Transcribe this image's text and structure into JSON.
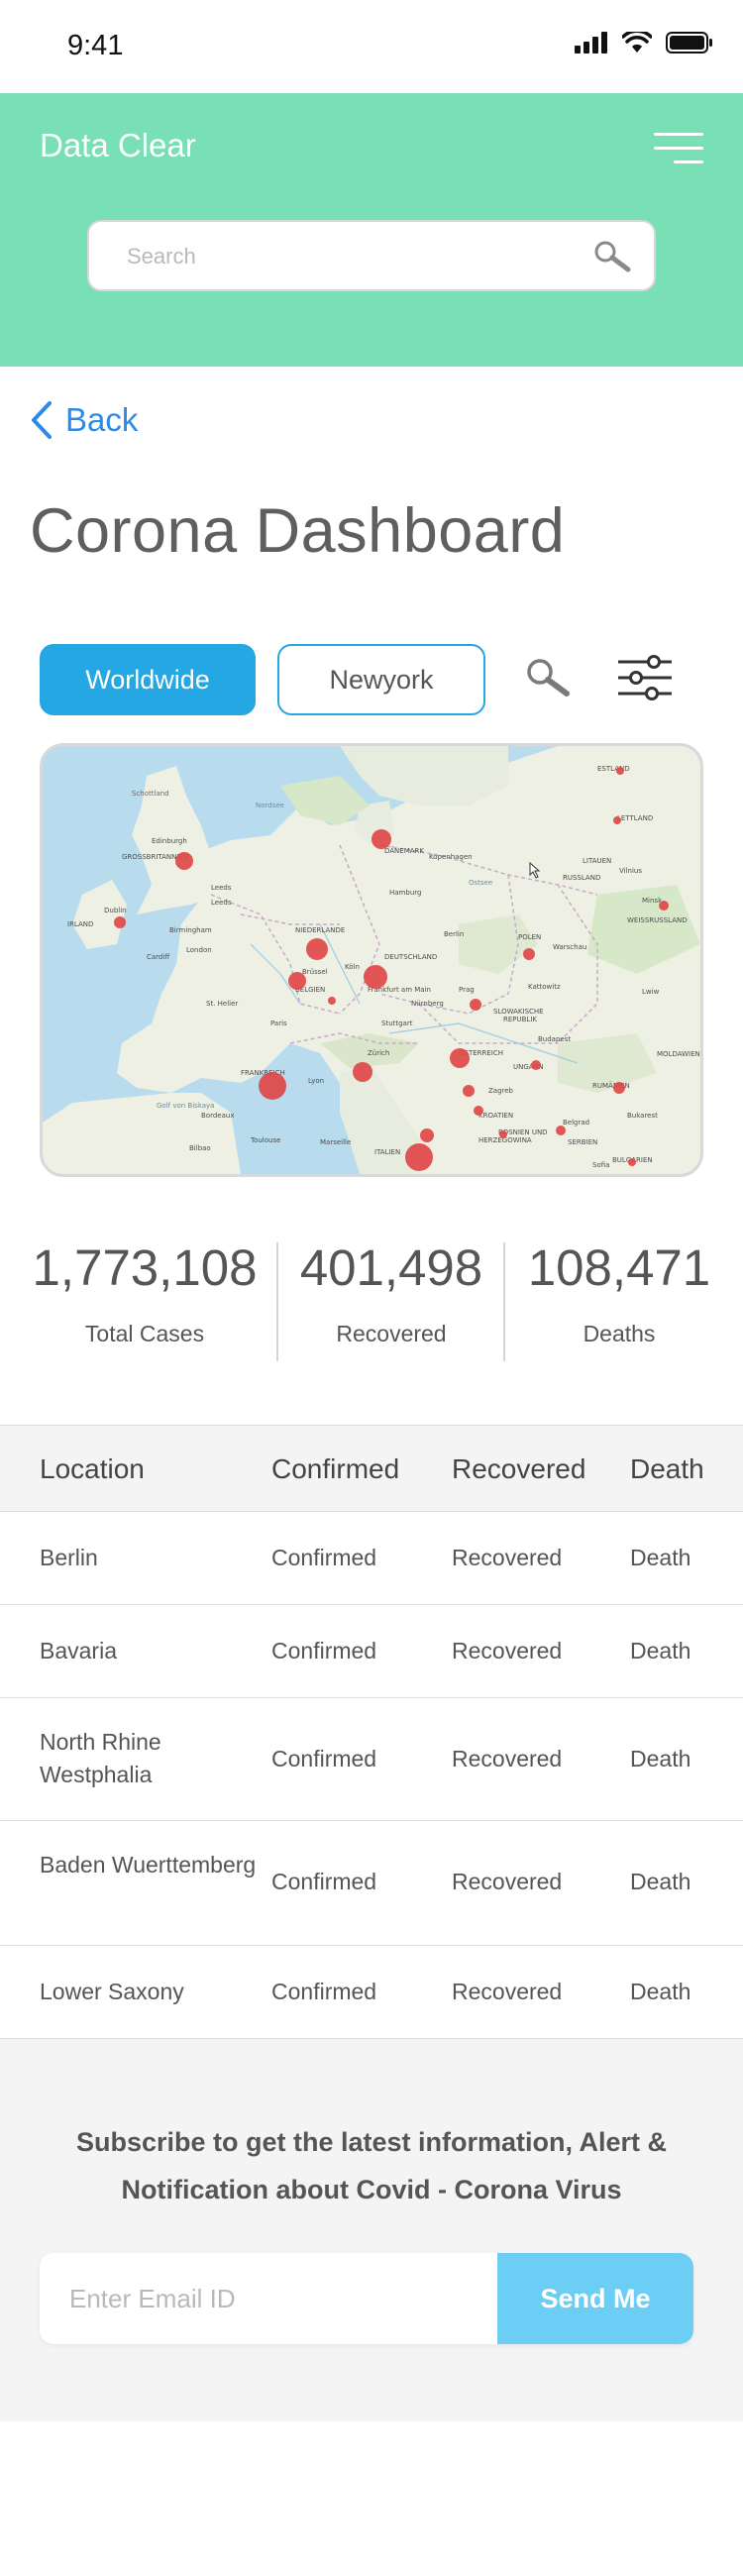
{
  "status_bar": {
    "time": "9:41",
    "icons": [
      "cellular-signal-icon",
      "wifi-icon",
      "battery-icon"
    ]
  },
  "header": {
    "brand": "Data Clear",
    "menu_icon": "hamburger-menu-icon",
    "search": {
      "placeholder": "Search",
      "icon": "search-icon"
    },
    "background_color": "#79dfb5"
  },
  "nav": {
    "back_label": "Back",
    "back_icon": "chevron-left-icon",
    "link_color": "#2b8be8"
  },
  "page_title": "Corona Dashboard",
  "filters": {
    "tabs": [
      {
        "label": "Worldwide",
        "active": true
      },
      {
        "label": "Newyork",
        "active": false
      }
    ],
    "search_icon": "search-icon",
    "filter_icon": "sliders-icon",
    "accent_color": "#25a7e3"
  },
  "map": {
    "labels": [
      "Edinburgh",
      "GROSSBRITANNIEN",
      "IRLAND",
      "Dublin",
      "Leeds",
      "Birmingham",
      "Cardiff",
      "London",
      "Nordsee",
      "DÄNEMARK",
      "Kopenhagen",
      "Hamburg",
      "Berlin",
      "NIEDERLANDE",
      "DEUTSCHLAND",
      "Brüssel",
      "BELGIEN",
      "Köln",
      "Frankfurt am Main",
      "Paris",
      "Nürnberg",
      "Prag",
      "Stuttgart",
      "POLEN",
      "Warschau",
      "Kattowitz",
      "Krakau",
      "SLOWAKISCHE REPUBLIK",
      "FRANKREICH",
      "Zürich",
      "ÖSTERREICH",
      "Budapest",
      "UNGARN",
      "Lyon",
      "Bordeaux",
      "Toulouse",
      "Marseille",
      "Bilbao",
      "Zagreb",
      "KROATIEN",
      "BOSNIEN UND HERZEGOWINA",
      "SERBIEN",
      "Belgrad",
      "RUMÄNIEN",
      "Bukarest",
      "BULGARIEN",
      "Sofia",
      "LITAUEN",
      "RUSSLAND",
      "Vilnius",
      "Minsk",
      "WEISSRUSSLAND",
      "LETTLAND",
      "ESTLAND",
      "Lwiw",
      "MOLDAWIEN",
      "ITALIEN",
      "Golf von Biskaya",
      "St. Helier",
      "Ostsee"
    ],
    "marker_color": "#e04848"
  },
  "stats": [
    {
      "value": "1,773,108",
      "label": "Total Cases"
    },
    {
      "value": "401,498",
      "label": "Recovered"
    },
    {
      "value": "108,471",
      "label": "Deaths"
    }
  ],
  "table": {
    "headers": [
      "Location",
      "Confirmed",
      "Recovered",
      "Death"
    ],
    "rows": [
      {
        "location": "Berlin",
        "confirmed": "Confirmed",
        "recovered": "Recovered",
        "death": "Death"
      },
      {
        "location": "Bavaria",
        "confirmed": "Confirmed",
        "recovered": "Recovered",
        "death": "Death"
      },
      {
        "location": "North Rhine Westphalia",
        "confirmed": "Confirmed",
        "recovered": "Recovered",
        "death": "Death"
      },
      {
        "location": "Baden Wuerttemberg",
        "confirmed": "Confirmed",
        "recovered": "Recovered",
        "death": "Death"
      },
      {
        "location": "Lower Saxony",
        "confirmed": "Confirmed",
        "recovered": "Recovered",
        "death": "Death"
      }
    ]
  },
  "subscribe": {
    "text": "Subscribe to get the latest information, Alert & Notification about Covid - Corona Virus",
    "email_placeholder": "Enter Email ID",
    "button_label": "Send Me",
    "button_color": "#6ccdf5"
  }
}
